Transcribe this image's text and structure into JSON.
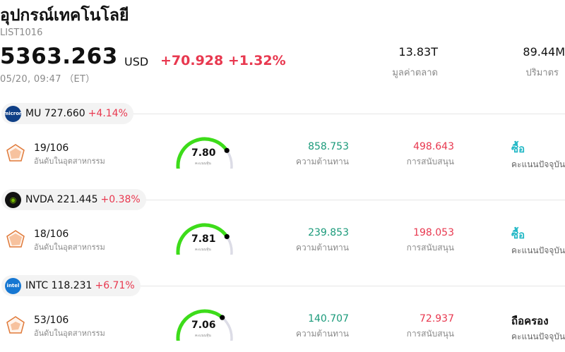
{
  "header": {
    "title": "อุปกรณ์เทคโนโลยี",
    "code": "LIST1016",
    "price": "5363.263",
    "currency": "USD",
    "change": "+70.928 +1.32%",
    "timestamp": "05/20, 09:47 （ET）",
    "market_cap_value": "13.83T",
    "market_cap_label": "มูลค่าตลาด",
    "volume_value": "89.44M",
    "volume_label": "ปริมาตร"
  },
  "labels": {
    "rank_caption": "อันดับในอุตสาหกรรม",
    "gauge_caption": "คะแนนหุ้น",
    "resistance_label": "ความต้านทาน",
    "support_label": "การสนับสนุน",
    "rating_caption": "คะแนนปัจจุบัน"
  },
  "colors": {
    "up": "#e8384f",
    "resistance": "#1a9a7a",
    "buy": "#22b8c6",
    "gauge": "#3ddc1a"
  },
  "stocks": [
    {
      "ticker": "MU",
      "price": "727.660",
      "change": "+4.14%",
      "logo_icon": "micron-logo",
      "rank": "19/106",
      "score": "7.80",
      "score_fraction": 0.78,
      "resistance": "858.753",
      "support": "498.643",
      "rating": "ซื้อ"
    },
    {
      "ticker": "NVDA",
      "price": "221.445",
      "change": "+0.38%",
      "logo_icon": "nvidia-logo",
      "rank": "18/106",
      "score": "7.81",
      "score_fraction": 0.781,
      "resistance": "239.853",
      "support": "198.053",
      "rating": "ซื้อ"
    },
    {
      "ticker": "INTC",
      "price": "118.231",
      "change": "+6.71%",
      "logo_icon": "intel-logo",
      "rank": "53/106",
      "score": "7.06",
      "score_fraction": 0.706,
      "resistance": "140.707",
      "support": "72.937",
      "rating": "ถือครอง"
    }
  ]
}
